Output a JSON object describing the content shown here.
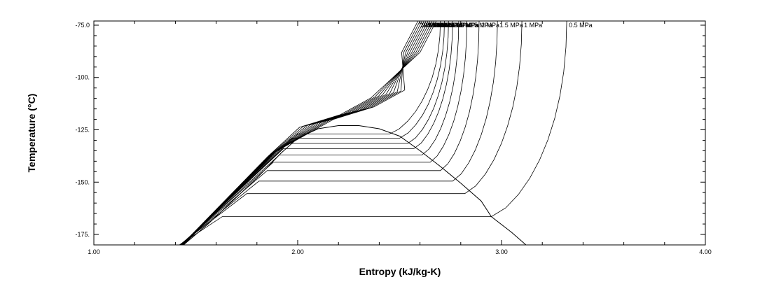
{
  "chart_data": {
    "type": "line",
    "title": "",
    "xlabel": "Entropy (kJ/kg-K)",
    "ylabel": "Temperature (°C)",
    "xlim": [
      1.0,
      4.0
    ],
    "ylim": [
      -180.0,
      -73.0
    ],
    "x_ticks": [
      1.0,
      2.0,
      3.0,
      4.0
    ],
    "x_tick_labels": [
      "1.00",
      "2.00",
      "3.00",
      "4.00"
    ],
    "y_ticks": [
      -75,
      -100,
      -125,
      -150,
      -175
    ],
    "y_tick_labels": [
      "-75.0",
      "-100.",
      "-125.",
      "-150.",
      "-175."
    ],
    "grid": false,
    "legend": "none",
    "saturation_dome": {
      "x": [
        1.44,
        1.56,
        1.68,
        1.8,
        1.92,
        2.0,
        2.1,
        2.2,
        2.3,
        2.4,
        2.5,
        2.6,
        2.7,
        2.8,
        2.9,
        2.95,
        3.05,
        3.12
      ],
      "y": [
        -180.0,
        -170.0,
        -159.0,
        -148.0,
        -136.0,
        -129.0,
        -124.5,
        -123.0,
        -123.0,
        -124.5,
        -128.0,
        -135.0,
        -142.5,
        -150.5,
        -159.0,
        -166.5,
        -174.0,
        -180.0
      ]
    },
    "isobars": [
      {
        "label": "0.5 MPa",
        "sat_T": -166.5,
        "s_liq": 1.63,
        "s_vap": 2.95,
        "top_s": 3.32
      },
      {
        "label": "1 MPa",
        "sat_T": -155.5,
        "s_liq": 1.75,
        "s_vap": 2.82,
        "top_s": 3.1
      },
      {
        "label": "1.5 MPa",
        "sat_T": -149.5,
        "s_liq": 1.81,
        "s_vap": 2.76,
        "top_s": 2.98
      },
      {
        "label": "2 MPa",
        "sat_T": -144.5,
        "s_liq": 1.85,
        "s_vap": 2.7,
        "top_s": 2.89
      },
      {
        "label": "2.5 MPa",
        "sat_T": -140.5,
        "s_liq": 1.88,
        "s_vap": 2.65,
        "top_s": 2.83
      },
      {
        "label": "3 MPa",
        "sat_T": -137.0,
        "s_liq": 1.91,
        "s_vap": 2.61,
        "top_s": 2.79
      },
      {
        "label": "3.5 MPa",
        "sat_T": -134.0,
        "s_liq": 1.93,
        "s_vap": 2.57,
        "top_s": 2.76
      },
      {
        "label": "4 MPa",
        "sat_T": -131.5,
        "s_liq": 1.95,
        "s_vap": 2.54,
        "top_s": 2.74
      },
      {
        "label": "4.5 MPa",
        "sat_T": -129.0,
        "s_liq": 1.97,
        "s_vap": 2.5,
        "top_s": 2.72
      },
      {
        "label": "5 MPa",
        "sat_T": -127.0,
        "s_liq": 2.0,
        "s_vap": 2.45,
        "top_s": 2.7
      },
      {
        "label": "5.5 MPa",
        "sat_T": null,
        "s_liq": null,
        "s_vap": null,
        "top_s": 2.68
      },
      {
        "label": "6 MPa",
        "sat_T": null,
        "s_liq": null,
        "s_vap": null,
        "top_s": 2.67
      },
      {
        "label": "6.5 MPa",
        "sat_T": null,
        "s_liq": null,
        "s_vap": null,
        "top_s": 2.66
      },
      {
        "label": "7 MPa",
        "sat_T": null,
        "s_liq": null,
        "s_vap": null,
        "top_s": 2.65
      },
      {
        "label": "7.5 MPa",
        "sat_T": null,
        "s_liq": null,
        "s_vap": null,
        "top_s": 2.64
      },
      {
        "label": "8 MPa",
        "sat_T": null,
        "s_liq": null,
        "s_vap": null,
        "top_s": 2.63
      },
      {
        "label": "8.5 MPa",
        "sat_T": null,
        "s_liq": null,
        "s_vap": null,
        "top_s": 2.62
      },
      {
        "label": "9 MPa",
        "sat_T": null,
        "s_liq": null,
        "s_vap": null,
        "top_s": 2.61
      },
      {
        "label": "9.5 MPa",
        "sat_T": null,
        "s_liq": null,
        "s_vap": null,
        "top_s": 2.6
      },
      {
        "label": "10 MPa",
        "sat_T": null,
        "s_liq": null,
        "s_vap": null,
        "top_s": 2.59
      }
    ]
  }
}
